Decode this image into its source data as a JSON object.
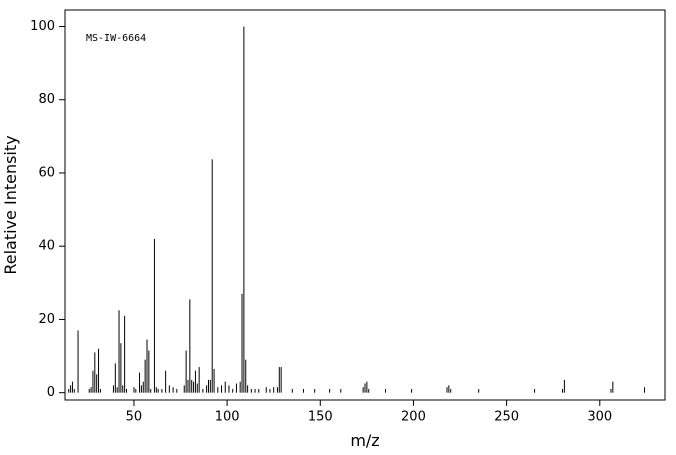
{
  "chart_data": {
    "type": "stick",
    "annotation": "MS-IW-6664",
    "x_label": "m/z",
    "y_label": "Relative Intensity",
    "color": "#000000",
    "xlim": [
      13,
      335
    ],
    "ylim": [
      -2,
      104.5
    ],
    "xticks": [
      50,
      100,
      150,
      200,
      250,
      300
    ],
    "yticks": [
      0,
      20,
      40,
      60,
      80,
      100
    ],
    "x": [
      15,
      16,
      17,
      18,
      20,
      26,
      27,
      28,
      29,
      30,
      31,
      32,
      39,
      40,
      41,
      42,
      43,
      44,
      45,
      46,
      50,
      51,
      53,
      54,
      55,
      56,
      57,
      58,
      59,
      61,
      62,
      63,
      65,
      67,
      69,
      71,
      73,
      77,
      78,
      79,
      80,
      81,
      82,
      83,
      84,
      85,
      87,
      89,
      90,
      91,
      92,
      93,
      95,
      97,
      99,
      101,
      103,
      105,
      107,
      108,
      109,
      110,
      111,
      113,
      115,
      117,
      121,
      123,
      125,
      127,
      128,
      129,
      135,
      141,
      147,
      155,
      161,
      173,
      174,
      175,
      176,
      185,
      199,
      218,
      219,
      220,
      235,
      265,
      280,
      281,
      306,
      307,
      324
    ],
    "values": [
      1,
      2,
      3,
      1,
      17,
      1,
      1.5,
      6,
      11,
      5,
      12,
      1,
      2,
      8,
      1.5,
      22.5,
      13.5,
      2,
      21,
      1,
      1.5,
      1,
      5.5,
      2,
      3,
      9,
      14.5,
      11.5,
      1,
      42,
      1.5,
      1,
      1,
      6,
      2,
      1.5,
      1,
      2,
      11.5,
      3.5,
      25.5,
      3.5,
      3,
      6,
      2.5,
      7,
      1,
      2,
      3.5,
      3.5,
      63.7,
      6.5,
      1.5,
      2,
      3,
      2,
      1,
      2.5,
      3,
      27,
      100,
      9,
      2,
      1,
      1,
      1,
      1.5,
      1,
      1.5,
      1.5,
      7,
      7,
      1,
      1,
      1,
      1,
      1,
      1.5,
      2.5,
      3,
      1,
      1,
      1,
      1.5,
      2,
      1,
      1,
      1,
      1,
      3.5,
      1,
      3,
      1.5
    ]
  }
}
